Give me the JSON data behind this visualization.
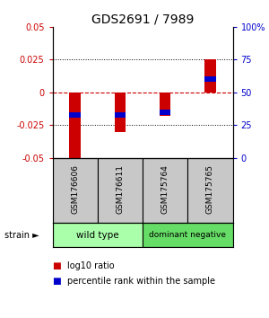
{
  "title": "GDS2691 / 7989",
  "samples": [
    "GSM176606",
    "GSM176611",
    "GSM175764",
    "GSM175765"
  ],
  "log10_ratio": [
    -0.052,
    -0.03,
    -0.018,
    0.025
  ],
  "percentile_rank": [
    33,
    33,
    35,
    60
  ],
  "ylim": [
    -0.05,
    0.05
  ],
  "yticks_left": [
    -0.05,
    -0.025,
    0,
    0.025,
    0.05
  ],
  "ytick_labels_left": [
    "-0.05",
    "-0.025",
    "0",
    "0.025",
    "0.05"
  ],
  "ytick_labels_right": [
    "0",
    "25",
    "50",
    "75",
    "100%"
  ],
  "ytick_positions_right": [
    0,
    25,
    50,
    75,
    100
  ],
  "bar_color": "#CC0000",
  "dot_color": "#0000CC",
  "bar_width": 0.25,
  "zero_line_color": "#CC0000",
  "grid_color": "#000000",
  "left_axis_color": "#CC0000",
  "right_axis_color": "#0000CC",
  "bg_color": "#FFFFFF",
  "sample_label_bg": "#C8C8C8",
  "wt_color": "#AAFFAA",
  "dn_color": "#66DD66",
  "legend_log10_color": "#CC0000",
  "legend_pct_color": "#0000CC"
}
